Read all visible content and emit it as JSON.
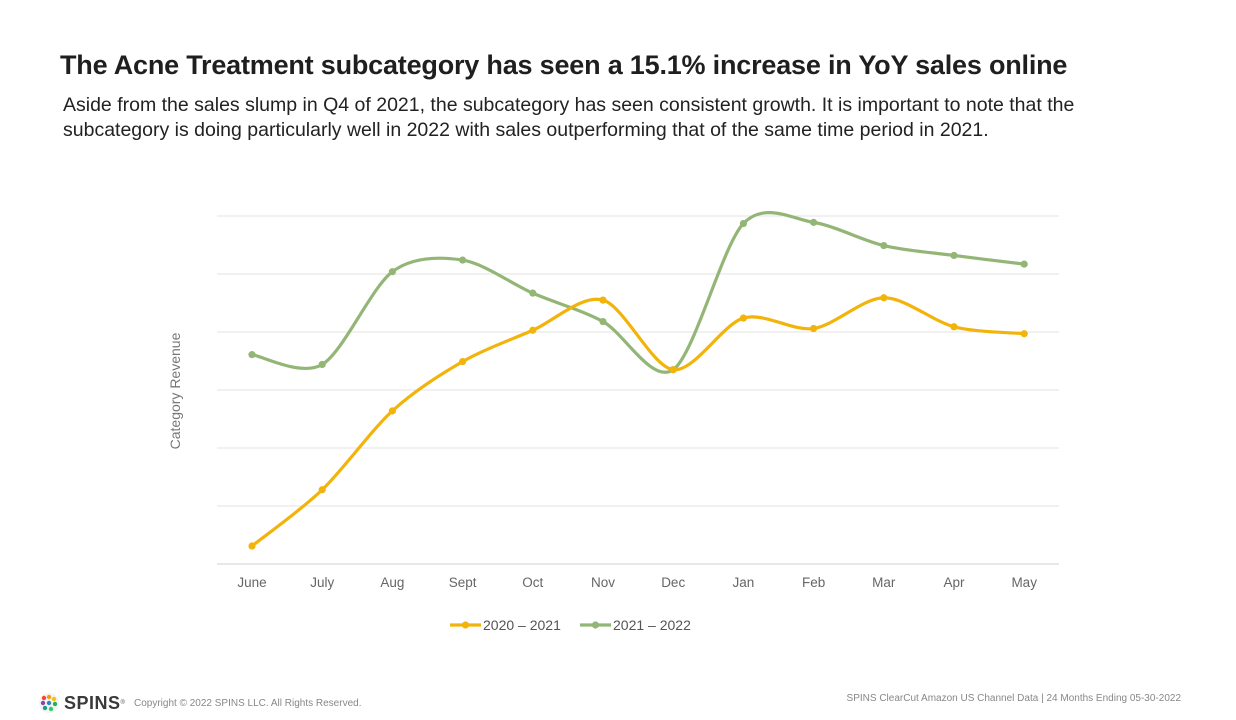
{
  "header": {
    "title": "The Acne Treatment subcategory has seen a 15.1% increase in YoY sales online",
    "subtitle": "Aside from the sales slump in Q4 of 2021, the subcategory has seen consistent growth. It is important to note that the subcategory is doing particularly well in 2022 with sales outperforming that of the same time period in 2021."
  },
  "chart_data": {
    "type": "line",
    "categories": [
      "June",
      "July",
      "Aug",
      "Sept",
      "Oct",
      "Nov",
      "Dec",
      "Jan",
      "Feb",
      "Mar",
      "Apr",
      "May"
    ],
    "ylabel": "Category Revenue",
    "xlabel": "",
    "ylim": [
      0,
      6
    ],
    "grid": true,
    "legend_position": "bottom",
    "series": [
      {
        "name": "2020 – 2021",
        "color": "#F2B40A",
        "values": [
          0.31,
          1.28,
          2.64,
          3.49,
          4.03,
          4.55,
          3.35,
          4.24,
          4.06,
          4.59,
          4.09,
          3.97
        ]
      },
      {
        "name": "2021 – 2022",
        "color": "#93B676",
        "values": [
          3.61,
          3.44,
          5.04,
          5.24,
          4.67,
          4.18,
          3.35,
          5.87,
          5.89,
          5.49,
          5.32,
          5.17
        ]
      }
    ]
  },
  "footer": {
    "brand": "SPINS",
    "trademark": "®",
    "copyright": "Copyright © 2022 SPINS LLC. All Rights Reserved.",
    "source": "SPINS ClearCut Amazon US Channel Data | 24 Months Ending 05-30-2022"
  }
}
